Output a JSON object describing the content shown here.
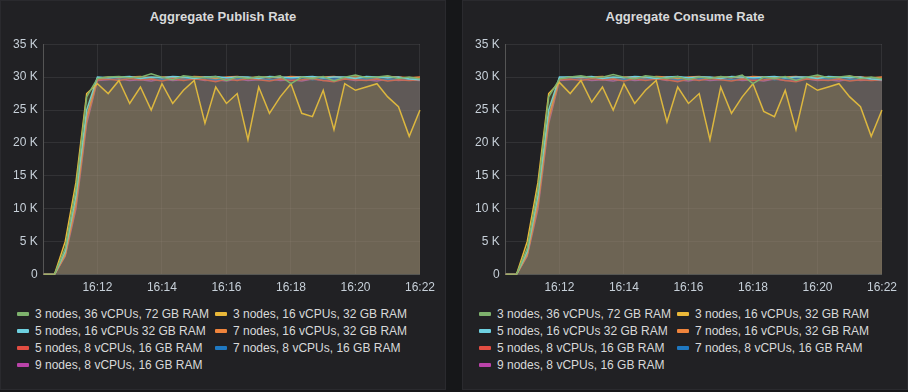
{
  "chart_data": [
    {
      "type": "area",
      "title": "Aggregate Publish Rate",
      "categories": [
        null,
        null,
        null,
        null,
        null,
        "16:12",
        null,
        null,
        null,
        null,
        null,
        "16:14",
        null,
        null,
        null,
        null,
        null,
        "16:16",
        null,
        null,
        null,
        null,
        null,
        "16:18",
        null,
        null,
        null,
        null,
        null,
        "16:20",
        null,
        null,
        null,
        null,
        null,
        "16:22"
      ],
      "ylim": [
        0,
        35000
      ],
      "yticks": [
        0,
        {
          "value": 5000,
          "label": "5 K"
        },
        {
          "value": 10000,
          "label": "10 K"
        },
        {
          "value": 15000,
          "label": "15 K"
        },
        {
          "value": 20000,
          "label": "20 K"
        },
        {
          "value": 25000,
          "label": "25 K"
        },
        {
          "value": 30000,
          "label": "30 K"
        },
        {
          "value": 35000,
          "label": "35 K"
        }
      ],
      "grid": true,
      "legend": "bottom",
      "series": [
        {
          "name": "3 nodes, 36 vCPUs, 72 GB RAM",
          "color": "#7eb26d",
          "values": [
            0,
            0,
            4000,
            13000,
            27000,
            29800,
            30000,
            30100,
            29900,
            30000,
            30500,
            30000,
            29600,
            30200,
            30000,
            29900,
            30100,
            29500,
            30000,
            29800,
            30100,
            29900,
            30200,
            29000,
            30000,
            29800,
            30100,
            29400,
            30000,
            30300,
            29900,
            30000,
            30200,
            29800,
            30000,
            29700
          ]
        },
        {
          "name": "3 nodes, 16 vCPUs, 32 GB RAM",
          "color": "#eab839",
          "values": [
            0,
            0,
            5000,
            14000,
            27500,
            29000,
            27500,
            29500,
            26000,
            28500,
            25000,
            29000,
            26000,
            28000,
            29500,
            23000,
            28500,
            26000,
            27500,
            20500,
            28500,
            24500,
            27000,
            29000,
            24500,
            24000,
            28000,
            22000,
            29000,
            28000,
            28500,
            29000,
            27000,
            25500,
            21000,
            25000
          ]
        },
        {
          "name": "5 nodes, 16 vCPUs 32 GB RAM",
          "color": "#6ed0e0",
          "values": [
            0,
            0,
            3500,
            12000,
            25000,
            30000,
            29900,
            30000,
            30100,
            29800,
            30000,
            29900,
            30100,
            30000,
            29800,
            30000,
            30100,
            29900,
            30000,
            30000,
            29800,
            30100,
            30000,
            29900,
            30000,
            30100,
            29900,
            30000,
            30000,
            29800,
            30100,
            30000,
            29900,
            30000,
            29700,
            29600
          ]
        },
        {
          "name": "7 nodes, 16 vCPUs, 32 GB RAM",
          "color": "#ef843c",
          "values": [
            0,
            0,
            3000,
            11000,
            24000,
            29800,
            30000,
            29900,
            30000,
            30100,
            29900,
            30000,
            30000,
            29900,
            30100,
            30000,
            29800,
            30000,
            30100,
            29900,
            30000,
            30000,
            29900,
            30100,
            30000,
            29900,
            30000,
            30100,
            29900,
            30000,
            30000,
            29900,
            30100,
            30000,
            29900,
            30000
          ]
        },
        {
          "name": "5 nodes, 8 vCPUs, 16 GB RAM",
          "color": "#e24d42",
          "values": [
            0,
            0,
            3000,
            10500,
            23500,
            29600,
            29700,
            29500,
            29800,
            29600,
            29700,
            29400,
            29800,
            29500,
            29700,
            29600,
            29300,
            29700,
            29500,
            29800,
            29600,
            29400,
            29700,
            29500,
            29600,
            29800,
            29500,
            29300,
            29700,
            29600,
            29500,
            29700,
            29400,
            29600,
            29500,
            29600
          ]
        },
        {
          "name": "7 nodes, 8 vCPUs, 16 GB RAM",
          "color": "#1f78c1",
          "values": [
            0,
            0,
            3200,
            11000,
            24000,
            29700,
            29800,
            29600,
            29900,
            29700,
            29800,
            29600,
            29900,
            29700,
            29800,
            29900,
            29600,
            29800,
            29700,
            29900,
            29700,
            29600,
            29800,
            29700,
            29900,
            29600,
            29800,
            29700,
            29800,
            29900,
            29700,
            29800,
            29600,
            29800,
            29700,
            29800
          ]
        },
        {
          "name": "9 nodes, 8 vCPUs, 16 GB RAM",
          "color": "#ba43a9",
          "values": [
            0,
            0,
            2800,
            10000,
            23000,
            29500,
            29600,
            29700,
            29500,
            29600,
            29400,
            29700,
            29500,
            29600,
            29800,
            29500,
            29600,
            29400,
            29700,
            29500,
            29600,
            29700,
            29500,
            29600,
            29400,
            29700,
            29500,
            29600,
            29700,
            29500,
            29600,
            29400,
            29700,
            29500,
            29600,
            29500
          ]
        }
      ]
    },
    {
      "type": "area",
      "title": "Aggregate Consume Rate",
      "categories": [
        null,
        null,
        null,
        null,
        null,
        "16:12",
        null,
        null,
        null,
        null,
        null,
        "16:14",
        null,
        null,
        null,
        null,
        null,
        "16:16",
        null,
        null,
        null,
        null,
        null,
        "16:18",
        null,
        null,
        null,
        null,
        null,
        "16:20",
        null,
        null,
        null,
        null,
        null,
        "16:22"
      ],
      "ylim": [
        0,
        35000
      ],
      "yticks": [
        0,
        {
          "value": 5000,
          "label": "5 K"
        },
        {
          "value": 10000,
          "label": "10 K"
        },
        {
          "value": 15000,
          "label": "15 K"
        },
        {
          "value": 20000,
          "label": "20 K"
        },
        {
          "value": 25000,
          "label": "25 K"
        },
        {
          "value": 30000,
          "label": "30 K"
        },
        {
          "value": 35000,
          "label": "35 K"
        }
      ],
      "grid": true,
      "legend": "bottom",
      "series": [
        {
          "name": "3 nodes, 36 vCPUs, 72 GB RAM",
          "color": "#7eb26d",
          "values": [
            0,
            0,
            4000,
            13000,
            27000,
            29700,
            30000,
            30200,
            29900,
            30000,
            30400,
            30000,
            29700,
            30200,
            30000,
            29800,
            30100,
            29600,
            30000,
            29800,
            30100,
            29900,
            30300,
            29000,
            30000,
            29800,
            30100,
            29500,
            30000,
            30300,
            29900,
            30000,
            30200,
            29800,
            30000,
            29700
          ]
        },
        {
          "name": "3 nodes, 16 vCPUs, 32 GB RAM",
          "color": "#eab839",
          "values": [
            0,
            0,
            5000,
            14000,
            27500,
            29200,
            27500,
            29500,
            26200,
            28500,
            25000,
            29000,
            26000,
            28000,
            29500,
            23200,
            28500,
            26000,
            27500,
            20500,
            28500,
            24500,
            27000,
            29000,
            24800,
            24000,
            28000,
            22000,
            29000,
            28000,
            28500,
            29000,
            27000,
            25500,
            21000,
            25000
          ]
        },
        {
          "name": "5 nodes, 16 vCPUs 32 GB RAM",
          "color": "#6ed0e0",
          "values": [
            0,
            0,
            3500,
            12000,
            25000,
            30000,
            30000,
            30000,
            30100,
            29800,
            30000,
            29900,
            30100,
            30000,
            29800,
            30000,
            30100,
            29900,
            30000,
            30000,
            29800,
            30100,
            30000,
            29900,
            30000,
            30100,
            29900,
            30000,
            30000,
            29800,
            30100,
            30000,
            29900,
            30000,
            29700,
            29600
          ]
        },
        {
          "name": "7 nodes, 16 vCPUs, 32 GB RAM",
          "color": "#ef843c",
          "values": [
            0,
            0,
            3000,
            11000,
            24000,
            29800,
            30000,
            29900,
            30000,
            30100,
            29900,
            30000,
            30000,
            29900,
            30100,
            30000,
            29800,
            30000,
            30100,
            29900,
            30000,
            30000,
            29900,
            30100,
            30000,
            29900,
            30000,
            30100,
            29900,
            30000,
            30000,
            29900,
            30100,
            30000,
            29900,
            30000
          ]
        },
        {
          "name": "5 nodes, 8 vCPUs, 16 GB RAM",
          "color": "#e24d42",
          "values": [
            0,
            0,
            3000,
            10500,
            23500,
            29600,
            29700,
            29500,
            29800,
            29600,
            29700,
            29400,
            29800,
            29500,
            29700,
            29600,
            29300,
            29700,
            29500,
            29800,
            29600,
            29400,
            29700,
            29500,
            29600,
            29800,
            29500,
            29300,
            29700,
            29600,
            29500,
            29700,
            29400,
            29600,
            29500,
            29600
          ]
        },
        {
          "name": "7 nodes, 8 vCPUs, 16 GB RAM",
          "color": "#1f78c1",
          "values": [
            0,
            0,
            3200,
            11000,
            24000,
            29700,
            29800,
            29600,
            29900,
            29700,
            29800,
            29600,
            29900,
            29700,
            29800,
            29900,
            29600,
            29800,
            29700,
            29900,
            29700,
            29600,
            29800,
            29700,
            29900,
            29600,
            29800,
            29700,
            29800,
            29900,
            29700,
            29800,
            29600,
            29800,
            29700,
            29800
          ]
        },
        {
          "name": "9 nodes, 8 vCPUs, 16 GB RAM",
          "color": "#ba43a9",
          "values": [
            0,
            0,
            2800,
            10000,
            23000,
            29500,
            29600,
            29700,
            29500,
            29600,
            29400,
            29700,
            29500,
            29600,
            29800,
            29500,
            29600,
            29400,
            29700,
            29500,
            29600,
            29700,
            29500,
            29600,
            29400,
            29700,
            29500,
            29600,
            29700,
            29500,
            29600,
            29400,
            29700,
            29500,
            29600,
            29500
          ]
        }
      ]
    }
  ]
}
